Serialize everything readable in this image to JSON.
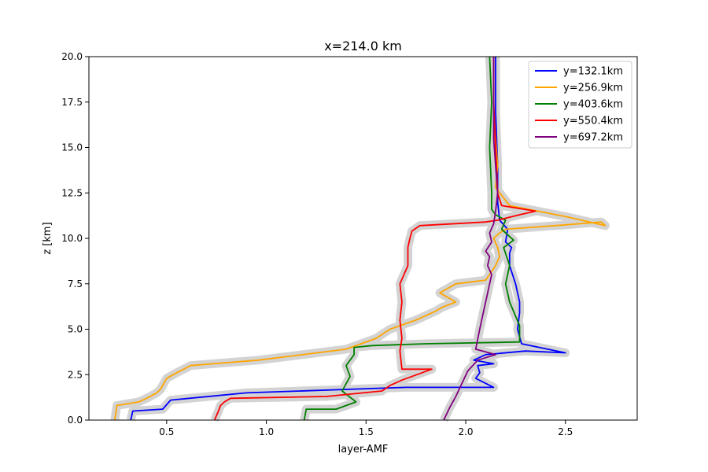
{
  "chart_data": {
    "type": "line",
    "title": "x=214.0 km",
    "xlabel": "layer-AMF",
    "ylabel": "z [km]",
    "xlim": [
      0.11,
      2.86
    ],
    "ylim": [
      0,
      20
    ],
    "xticks": [
      0.5,
      1.0,
      1.5,
      2.0,
      2.5
    ],
    "xtick_labels": [
      "0.5",
      "1.0",
      "1.5",
      "2.0",
      "2.5"
    ],
    "yticks": [
      0,
      2.5,
      5,
      7.5,
      10,
      12.5,
      15,
      17.5,
      20
    ],
    "ytick_labels": [
      "0.0",
      "2.5",
      "5.0",
      "7.5",
      "10.0",
      "12.5",
      "15.0",
      "17.5",
      "20.0"
    ],
    "grid": false,
    "legend_position": "top-right",
    "uncertainty_band": "grey shaded range around each series",
    "series": [
      {
        "name": "y=132.1km",
        "color": "#0000ff",
        "x": [
          0.32,
          0.33,
          0.48,
          0.52,
          0.9,
          1.7,
          2.14,
          2.05,
          2.07,
          2.06,
          2.14,
          2.04,
          2.1,
          2.3,
          2.5,
          2.28,
          2.26,
          2.27,
          2.27,
          2.25,
          2.22,
          2.22,
          2.23,
          2.2,
          2.21,
          2.17,
          2.16,
          2.16,
          2.15,
          2.15
        ],
        "y": [
          0.0,
          0.5,
          0.6,
          1.1,
          1.5,
          1.8,
          1.8,
          2.3,
          2.6,
          3.0,
          3.1,
          3.3,
          3.6,
          3.8,
          3.7,
          4.2,
          5.0,
          5.9,
          6.5,
          7.5,
          8.5,
          9.2,
          9.5,
          9.8,
          10.5,
          11.0,
          12.0,
          14.0,
          17.0,
          20.0
        ]
      },
      {
        "name": "y=256.9km",
        "color": "#ffa500",
        "x": [
          0.24,
          0.25,
          0.36,
          0.4,
          0.45,
          0.47,
          0.5,
          0.55,
          0.62,
          0.96,
          1.4,
          1.55,
          1.62,
          1.75,
          1.85,
          1.88,
          1.95,
          1.87,
          1.95,
          2.1,
          2.15,
          2.17,
          2.16,
          2.14,
          2.17,
          2.2,
          2.45,
          2.68,
          2.7,
          2.5,
          2.22,
          2.15,
          2.16,
          2.15,
          2.14,
          2.14
        ],
        "y": [
          0.0,
          0.8,
          1.0,
          1.2,
          1.5,
          1.7,
          2.3,
          2.6,
          3.0,
          3.3,
          3.9,
          4.5,
          5.0,
          5.5,
          6.0,
          6.2,
          6.5,
          7.0,
          7.5,
          7.7,
          8.5,
          9.0,
          9.5,
          10.0,
          10.3,
          10.5,
          10.7,
          10.9,
          10.7,
          11.2,
          11.8,
          12.8,
          14.0,
          15.5,
          17.0,
          20.0
        ]
      },
      {
        "name": "y=403.6km",
        "color": "#008000",
        "x": [
          1.19,
          1.2,
          1.35,
          1.45,
          1.38,
          1.42,
          1.4,
          1.44,
          1.44,
          1.53,
          1.8,
          2.27,
          2.27,
          2.22,
          2.2,
          2.22,
          2.19,
          2.24,
          2.18,
          2.2,
          2.15,
          2.13,
          2.13,
          2.12,
          2.13,
          2.12
        ],
        "y": [
          0.0,
          0.6,
          0.6,
          1.0,
          1.6,
          2.4,
          3.0,
          3.6,
          4.0,
          4.1,
          4.2,
          4.3,
          5.2,
          6.5,
          7.5,
          8.5,
          9.5,
          9.9,
          10.5,
          11.0,
          11.3,
          11.6,
          12.5,
          15.0,
          17.5,
          20.0
        ]
      },
      {
        "name": "y=550.4km",
        "color": "#ff0000",
        "x": [
          0.74,
          0.76,
          0.77,
          0.79,
          0.82,
          1.3,
          1.58,
          1.62,
          1.68,
          1.83,
          1.68,
          1.67,
          1.68,
          1.67,
          1.68,
          1.67,
          1.71,
          1.71,
          1.72,
          1.73,
          1.77,
          2.1,
          2.16,
          2.27,
          2.35,
          2.18,
          2.16,
          2.15,
          2.14,
          2.14
        ],
        "y": [
          0.0,
          0.5,
          0.8,
          1.0,
          1.2,
          1.3,
          1.6,
          1.9,
          2.2,
          2.8,
          2.8,
          3.8,
          4.5,
          5.5,
          6.5,
          7.5,
          8.5,
          9.5,
          10.0,
          10.4,
          10.7,
          10.9,
          11.0,
          11.3,
          11.5,
          11.8,
          12.5,
          15.0,
          17.5,
          20.0
        ]
      },
      {
        "name": "y=697.2km",
        "color": "#800080",
        "x": [
          1.89,
          1.92,
          1.95,
          1.98,
          2.01,
          2.06,
          2.15,
          2.05,
          2.07,
          2.09,
          2.11,
          2.12,
          2.13,
          2.11,
          2.12,
          2.1,
          2.13,
          2.12,
          2.14,
          2.15,
          2.16,
          2.15,
          2.14,
          2.14,
          2.14
        ],
        "y": [
          0.0,
          0.7,
          1.3,
          2.0,
          2.7,
          3.3,
          3.6,
          3.9,
          5.0,
          6.0,
          7.0,
          7.5,
          8.0,
          8.5,
          9.0,
          9.3,
          9.8,
          10.3,
          10.8,
          11.5,
          12.5,
          14.0,
          15.5,
          17.5,
          20.0
        ]
      }
    ]
  }
}
